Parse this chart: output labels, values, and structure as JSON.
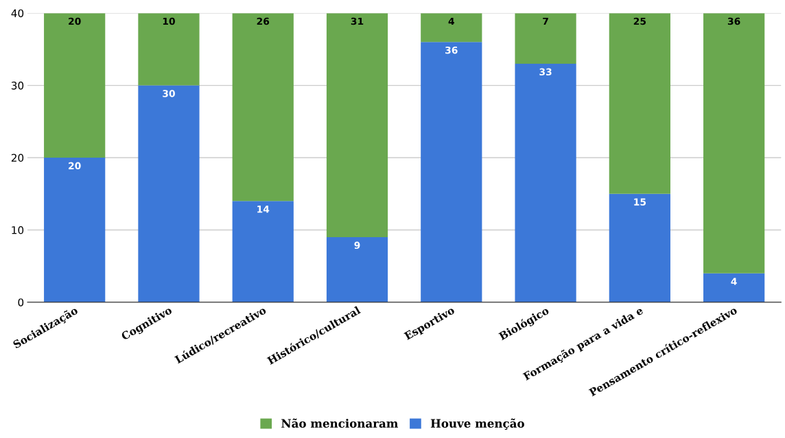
{
  "chart_data": {
    "type": "bar",
    "stacked": true,
    "categories": [
      "Socialização",
      "Cognitivo",
      "Lúdico/recreativo",
      "Histórico/cultural",
      "Esportivo",
      "Biológico",
      "Formação para a vida e",
      "Pensamento crítico-reflexivo"
    ],
    "series": [
      {
        "name": "Houve menção",
        "color": "#3c78d8",
        "values": [
          20,
          30,
          14,
          9,
          36,
          33,
          15,
          4
        ]
      },
      {
        "name": "Não mencionaram",
        "color": "#6aa84f",
        "values": [
          20,
          10,
          26,
          31,
          4,
          7,
          25,
          36
        ]
      }
    ],
    "ylim": [
      0,
      40
    ],
    "yticks": [
      0,
      10,
      20,
      30,
      40
    ],
    "grid": "y",
    "legend": "bottom",
    "data_labels": true
  }
}
